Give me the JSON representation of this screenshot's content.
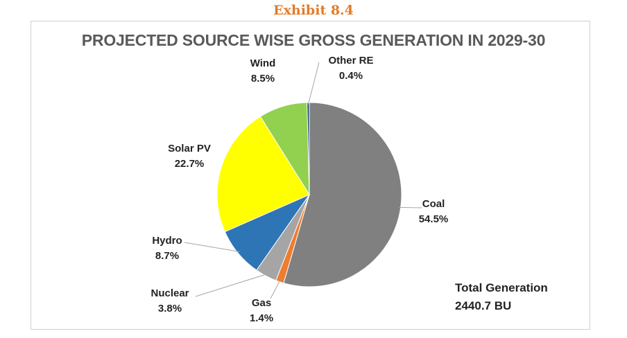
{
  "exhibit_label": "Exhibit 8.4",
  "colors": {
    "exhibit": "#e07b2a",
    "Coal": "#808080",
    "Gas": "#ed7d31",
    "Nuclear": "#a5a5a5",
    "Hydro": "#2e75b6",
    "Solar PV": "#ffff00",
    "Wind": "#92d050",
    "Other RE": "#1f4e79",
    "leader": "#a6a6a6"
  },
  "chart_data": {
    "type": "pie",
    "title": "PROJECTED SOURCE WISE GROSS GENERATION IN 2029-30",
    "categories": [
      "Coal",
      "Gas",
      "Nuclear",
      "Hydro",
      "Solar PV",
      "Wind",
      "Other RE"
    ],
    "values": [
      54.5,
      1.4,
      3.8,
      8.7,
      22.7,
      8.5,
      0.4
    ],
    "value_labels": [
      "54.5%",
      "1.4%",
      "3.8%",
      "8.7%",
      "22.7%",
      "8.5%",
      "0.4%"
    ],
    "unit": "%",
    "start_angle_deg": 0,
    "direction": "clockwise",
    "total_label": "Total Generation",
    "total_value": "2440.7 BU"
  }
}
